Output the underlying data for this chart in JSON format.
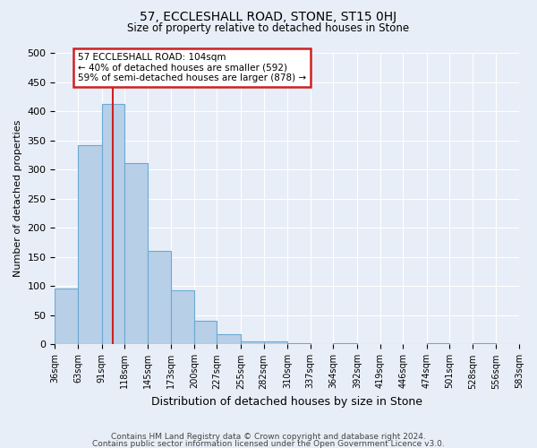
{
  "title_line1": "57, ECCLESHALL ROAD, STONE, ST15 0HJ",
  "title_line2": "Size of property relative to detached houses in Stone",
  "xlabel": "Distribution of detached houses by size in Stone",
  "ylabel": "Number of detached properties",
  "property_size": 104,
  "bin_edges": [
    36,
    63,
    91,
    118,
    145,
    173,
    200,
    227,
    255,
    282,
    310,
    337,
    364,
    392,
    419,
    446,
    474,
    501,
    528,
    556,
    583
  ],
  "bin_counts": [
    96,
    341,
    413,
    311,
    160,
    93,
    41,
    18,
    5,
    5,
    2,
    0,
    2,
    0,
    0,
    0,
    2,
    0,
    2,
    0
  ],
  "bar_color": "#b8cfe8",
  "bar_edge_color": "#6aaad4",
  "bar_linewidth": 0.8,
  "red_line_color": "#cc2222",
  "annotation_text": "57 ECCLESHALL ROAD: 104sqm\n← 40% of detached houses are smaller (592)\n59% of semi-detached houses are larger (878) →",
  "annotation_box_color": "white",
  "annotation_box_edge_color": "#cc2222",
  "ylim": [
    0,
    500
  ],
  "yticks": [
    0,
    50,
    100,
    150,
    200,
    250,
    300,
    350,
    400,
    450,
    500
  ],
  "background_color": "#e8eef7",
  "grid_color": "white",
  "footer_line1": "Contains HM Land Registry data © Crown copyright and database right 2024.",
  "footer_line2": "Contains public sector information licensed under the Open Government Licence v3.0."
}
